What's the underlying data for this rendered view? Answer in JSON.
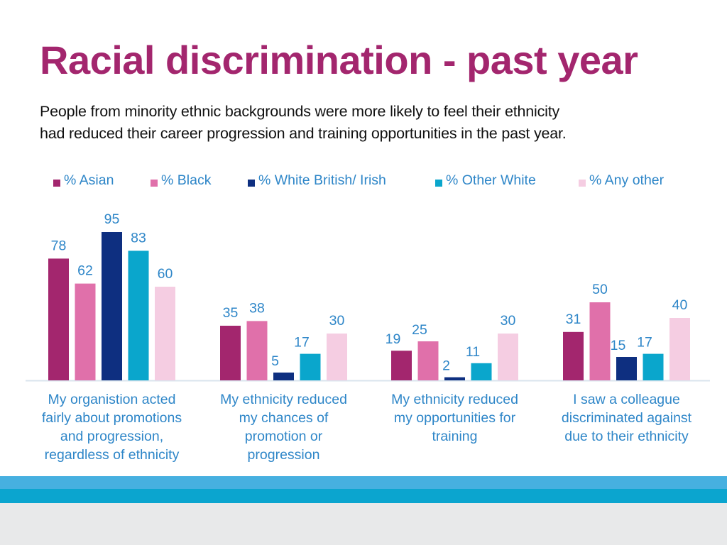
{
  "header": {
    "title": "Racial discrimination - past year",
    "subtitle_lines": [
      "People from minority ethnic backgrounds were more likely to feel their ethnicity",
      "had reduced their career progression and training opportunities in the past year."
    ]
  },
  "chart_data": {
    "type": "bar",
    "title": "Racial discrimination - past year",
    "categories": [
      [
        "My organistion acted",
        "fairly about promotions",
        "and progression,",
        "regardless of ethnicity"
      ],
      [
        "My ethnicity reduced",
        "my chances of",
        "promotion or",
        "progression"
      ],
      [
        "My ethnicity reduced",
        "my opportunities for",
        "training"
      ],
      [
        "I saw a colleague",
        "discriminated against",
        "due to their ethnicity"
      ]
    ],
    "series": [
      {
        "name": "% Asian",
        "color": "#a3266e",
        "values": [
          78,
          35,
          19,
          31
        ]
      },
      {
        "name": "% Black",
        "color": "#e070aa",
        "values": [
          62,
          38,
          25,
          50
        ]
      },
      {
        "name": "% White British/ Irish",
        "color": "#0e2f80",
        "values": [
          95,
          5,
          2,
          15
        ]
      },
      {
        "name": "% Other White",
        "color": "#0aa6cc",
        "values": [
          83,
          17,
          11,
          17
        ]
      },
      {
        "name": "% Any other",
        "color": "#f5cde2",
        "values": [
          60,
          30,
          30,
          40
        ]
      }
    ],
    "ylim": [
      0,
      100
    ],
    "grid": false,
    "legend_position": "top",
    "data_label_color": "#2e86c8",
    "axis_color": "#d9e4ee"
  }
}
